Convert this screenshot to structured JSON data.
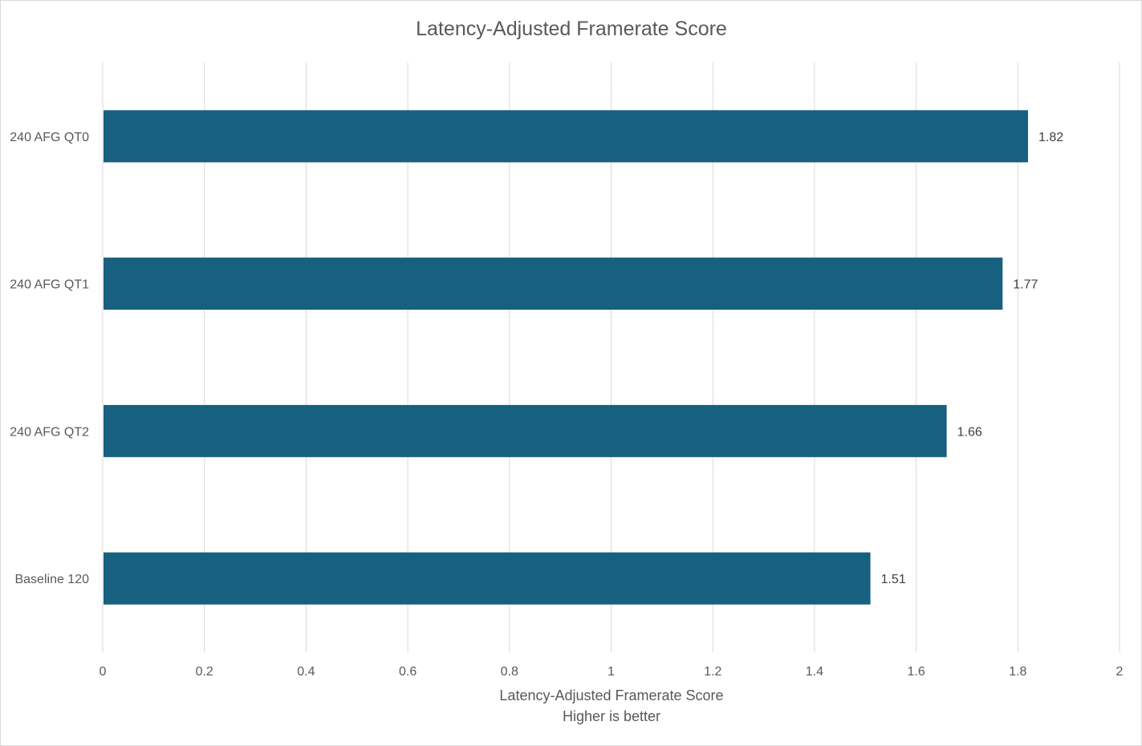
{
  "chart_data": {
    "type": "bar",
    "orientation": "horizontal",
    "title": "Latency-Adjusted Framerate Score",
    "categories": [
      "240 AFG QT0",
      "240 AFG QT1",
      "240 AFG QT2",
      "Baseline 120"
    ],
    "values": [
      1.82,
      1.77,
      1.66,
      1.51
    ],
    "data_labels": [
      "1.82",
      "1.77",
      "1.66",
      "1.51"
    ],
    "xlim": [
      0,
      2
    ],
    "x_ticks": [
      "0",
      "0.2",
      "0.4",
      "0.6",
      "0.8",
      "1",
      "1.2",
      "1.4",
      "1.6",
      "1.8",
      "2"
    ],
    "xlabel": "Latency-Adjusted Framerate Score",
    "xlabel_line2": "Higher is better",
    "ylabel": "",
    "grid": "vertical",
    "legend": "none",
    "bar_color": "#17607f"
  }
}
